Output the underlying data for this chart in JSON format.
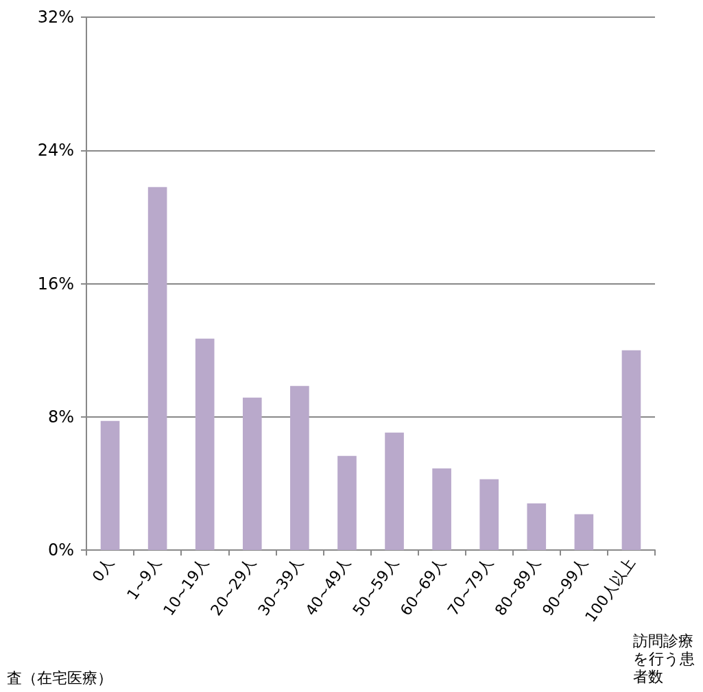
{
  "chart_data": {
    "type": "bar",
    "xlabel": "訪問診療を行う患者数",
    "categories": [
      "0人",
      "1~9人",
      "10~19人",
      "20~29人",
      "30~39人",
      "40~49人",
      "50~59人",
      "60~69人",
      "70~79人",
      "80~89人",
      "90~99人",
      "100人以上"
    ],
    "values": [
      7.75,
      21.8,
      12.7,
      9.15,
      9.85,
      5.65,
      7.05,
      4.9,
      4.25,
      2.8,
      2.15,
      12.0
    ],
    "color": "#b9a9cb",
    "ylim": [
      0,
      32
    ],
    "yticks": [
      {
        "value": 0,
        "label": "0%"
      },
      {
        "value": 8,
        "label": "8%"
      },
      {
        "value": 16,
        "label": "16%"
      },
      {
        "value": 24,
        "label": "24%"
      },
      {
        "value": 32,
        "label": "32%"
      }
    ],
    "grid": "y",
    "annotations": [
      "査（在宅医療）"
    ]
  }
}
